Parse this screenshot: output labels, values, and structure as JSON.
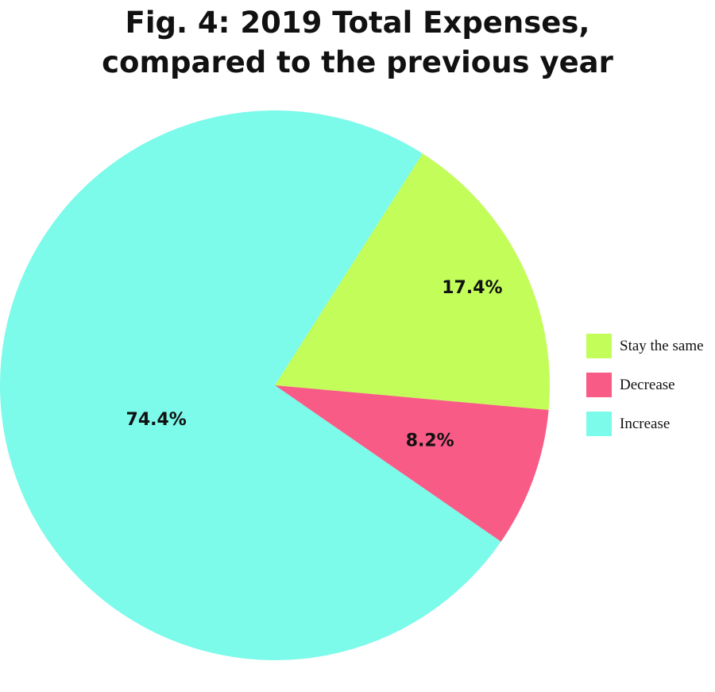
{
  "chart_data": {
    "type": "pie",
    "title_lines": [
      "Fig. 4: 2019 Total Expenses,",
      "compared to the previous year"
    ],
    "slices": [
      {
        "name": "Stay the same",
        "value": 17.4,
        "label": "17.4%",
        "color": "#c3fd5a"
      },
      {
        "name": "Decrease",
        "value": 8.2,
        "label": "8.2%",
        "color": "#f95b87"
      },
      {
        "name": "Increase",
        "value": 74.4,
        "label": "74.4%",
        "color": "#7cfaea"
      }
    ],
    "legend": {
      "position": "right",
      "items": [
        "Stay the same",
        "Decrease",
        "Increase"
      ]
    }
  }
}
